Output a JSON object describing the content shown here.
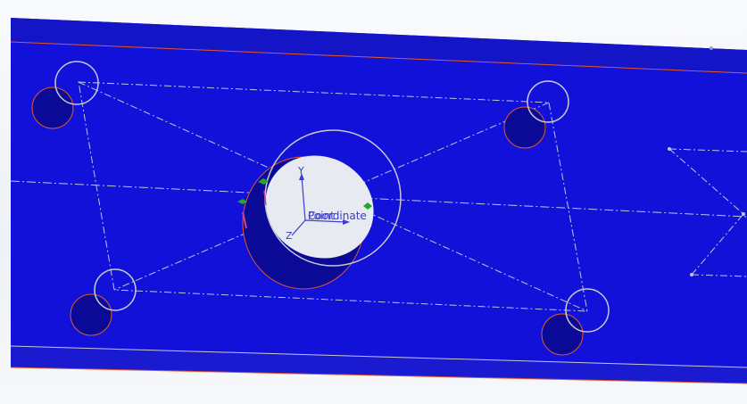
{
  "viewport": {
    "name": "3d-cad-viewport"
  },
  "part": {
    "face_color": "#1010d8",
    "edge_color": "#e05a2b",
    "hole_wall_color": "#0a0a96",
    "hole_interior_color": "#e8eaf2"
  },
  "coordinate_system": {
    "label_overlap": "PointCoordinate",
    "label_one": "Point",
    "label_two": "Coordinate",
    "y_axis": "Y",
    "z_axis": "Z"
  }
}
